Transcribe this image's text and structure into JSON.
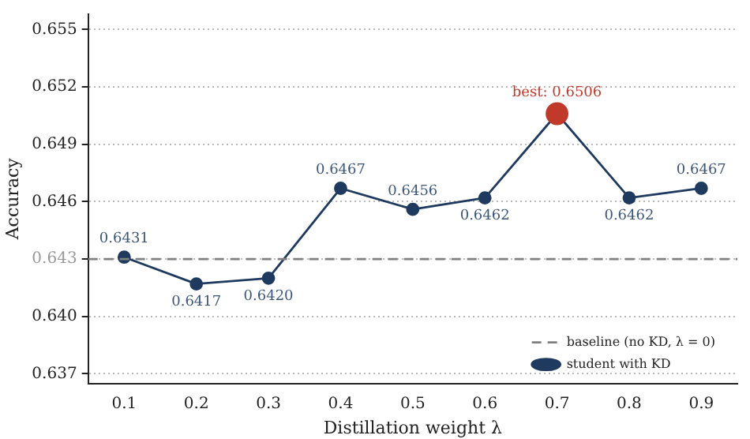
{
  "chart_data": {
    "type": "line",
    "xlabel": "Distillation weight λ",
    "ylabel": "Accuracy",
    "xlim": [
      0.05,
      0.95
    ],
    "xticks": [
      0.1,
      0.2,
      0.3,
      0.4,
      0.5,
      0.6,
      0.7,
      0.8,
      0.9
    ],
    "ylim": [
      0.6365,
      0.6558
    ],
    "yticks": [
      0.637,
      {
        "value": 0.64,
        "label": "0.640"
      },
      0.643,
      0.646,
      0.649,
      0.652,
      0.655
    ],
    "grid": "y",
    "legend": "bottom right",
    "marker": "circle",
    "series": [
      {
        "name": "baseline (no KD, λ = 0)",
        "color": "#808080",
        "line_style": "dashed",
        "marker": "none",
        "x": [
          0.05,
          0.95
        ],
        "values": [
          0.643,
          0.643
        ]
      },
      {
        "name": "student with KD",
        "color": "#1f3a5f",
        "x": [
          0.1,
          0.2,
          0.3,
          0.4,
          0.5,
          0.6,
          0.7,
          0.8,
          0.9
        ],
        "values": [
          0.6431,
          0.6417,
          0.642,
          0.6467,
          0.6456,
          0.6462,
          0.6506,
          0.6462,
          0.6467
        ],
        "colors": [
          "#1f3a5f",
          "#1f3a5f",
          "#1f3a5f",
          "#1f3a5f",
          "#1f3a5f",
          "#1f3a5f",
          "#c0392b",
          "#1f3a5f",
          "#1f3a5f"
        ],
        "value_labels": [
          "0.6431",
          "0.6417",
          "0.6420",
          "0.6467",
          "0.6456",
          "0.6462",
          "best: 0.6506",
          "0.6462",
          "0.6467"
        ]
      }
    ]
  }
}
